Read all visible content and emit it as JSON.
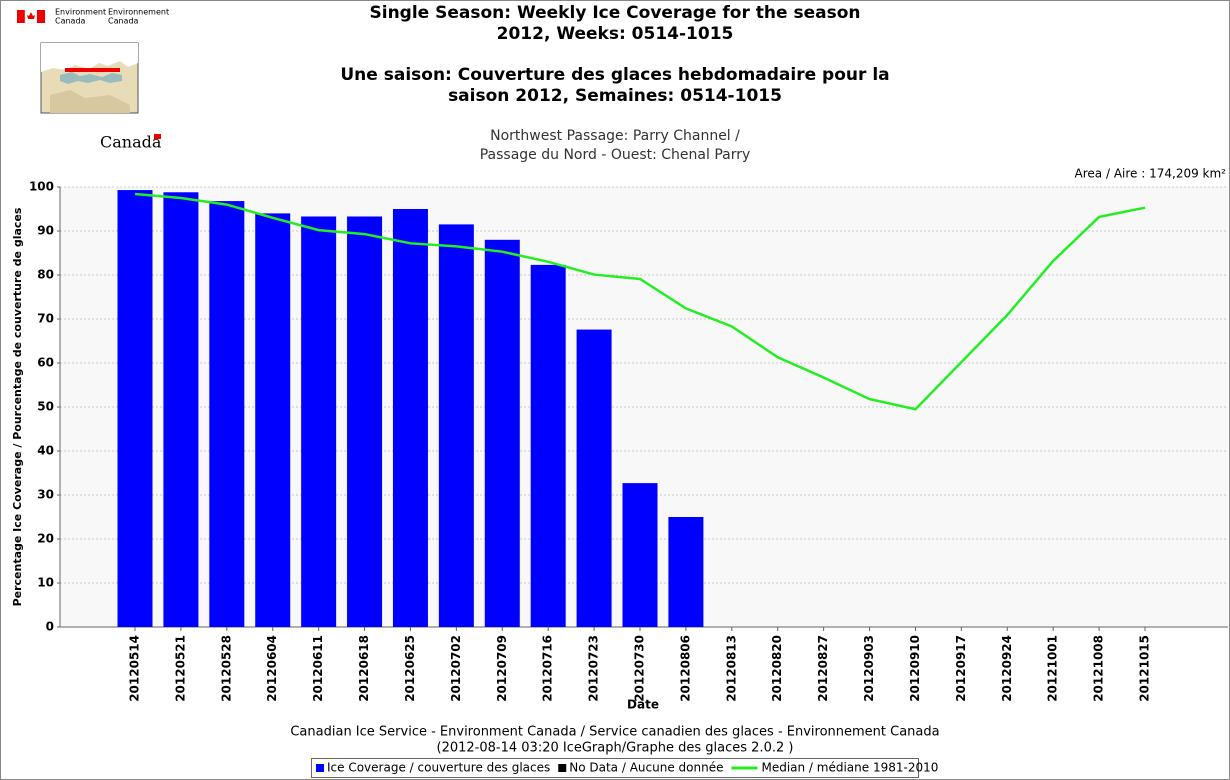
{
  "header": {
    "agency_en": "Environment",
    "agency_en2": "Canada",
    "agency_fr": "Environnement",
    "agency_fr2": "Canada",
    "wordmark": "Canada"
  },
  "chart_data": {
    "type": "bar",
    "title": [
      "Single Season: Weekly Ice Coverage for the season",
      "2012, Weeks: 0514-1015",
      "Une saison: Couverture des glaces hebdomadaire pour la",
      "saison 2012, Semaines: 0514-1015"
    ],
    "subtitle": [
      "Northwest Passage: Parry Channel /",
      "Passage du Nord - Ouest: Chenal Parry"
    ],
    "annotation": "Area / Aire : 174,209 km²",
    "x_label": "Date",
    "y_label": "Percentage Ice Coverage / Pourcentage de couverture de glaces",
    "footer": [
      "Canadian Ice Service - Environment Canada / Service canadien des glaces - Environnement Canada",
      "(2012-08-14 03:20 IceGraph/Graphe des glaces 2.0.2 )"
    ],
    "categories": [
      "20120514",
      "20120521",
      "20120528",
      "20120604",
      "20120611",
      "20120618",
      "20120625",
      "20120702",
      "20120709",
      "20120716",
      "20120723",
      "20120730",
      "20120806",
      "20120813",
      "20120820",
      "20120827",
      "20120903",
      "20120910",
      "20120917",
      "20120924",
      "20121001",
      "20121008",
      "20121015"
    ],
    "series": [
      {
        "name": "Ice Coverage / couverture des glaces",
        "color": "#0000ff",
        "kind": "bar",
        "values": [
          99.3,
          98.8,
          96.8,
          94.0,
          93.3,
          93.3,
          95.0,
          91.5,
          88.0,
          82.3,
          67.6,
          32.7,
          25.0,
          null,
          null,
          null,
          null,
          null,
          null,
          null,
          null,
          null,
          null
        ]
      },
      {
        "name": "No Data / Aucune donnée",
        "color": "#000000",
        "kind": "bar",
        "values": [
          null,
          null,
          null,
          null,
          null,
          null,
          null,
          null,
          null,
          null,
          null,
          null,
          null,
          null,
          null,
          null,
          null,
          null,
          null,
          null,
          null,
          null,
          null
        ]
      },
      {
        "name": "Median / médiane 1981-2010",
        "color": "#22ee22",
        "kind": "line",
        "values": [
          98.4,
          97.5,
          96.0,
          93.0,
          90.2,
          89.3,
          87.2,
          86.5,
          85.3,
          83.0,
          80.1,
          79.1,
          72.4,
          68.3,
          61.3,
          56.7,
          51.8,
          49.5,
          60.2,
          70.9,
          83.2,
          93.2,
          95.3
        ]
      }
    ],
    "ylim": [
      0,
      100
    ],
    "yticks": [
      0,
      10,
      20,
      30,
      40,
      50,
      60,
      70,
      80,
      90,
      100
    ],
    "grid": true
  }
}
